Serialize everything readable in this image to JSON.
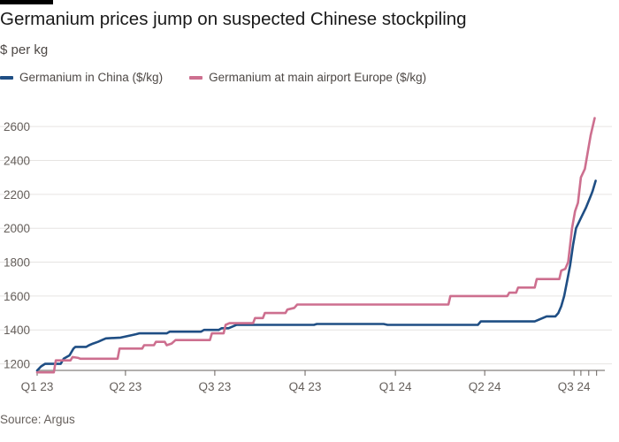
{
  "title": "Germanium prices jump on suspected Chinese stockpiling",
  "subtitle": "$ per kg",
  "source": "Source: Argus",
  "colors": {
    "china": "#1f4e84",
    "europe": "#cd6f8f",
    "grid": "#e6e4e2",
    "axis": "#66605c"
  },
  "legend": [
    {
      "label": "Germanium in China ($/kg)",
      "color": "#1f4e84"
    },
    {
      "label": "Germanium at main airport Europe ($/kg)",
      "color": "#cd6f8f"
    }
  ],
  "chart_data": {
    "type": "line",
    "title": "Germanium prices jump on suspected Chinese stockpiling",
    "ylabel": "$ per kg",
    "ylim": [
      1130,
      2700
    ],
    "xlim": [
      "2023-01-01",
      "2024-07-27"
    ],
    "yticks": [
      1200,
      1400,
      1600,
      1800,
      2000,
      2200,
      2400,
      2600
    ],
    "xticks": [
      {
        "date": "2023-01-01",
        "label": "Q1 23"
      },
      {
        "date": "2023-04-01",
        "label": "Q2 23"
      },
      {
        "date": "2023-07-01",
        "label": "Q3 23"
      },
      {
        "date": "2023-10-01",
        "label": "Q4 23"
      },
      {
        "date": "2024-01-01",
        "label": "Q1 24"
      },
      {
        "date": "2024-04-01",
        "label": "Q2 24"
      },
      {
        "date": "2024-07-01",
        "label": "Q3 24"
      }
    ],
    "grid": true,
    "legend_position": "top-left",
    "series": [
      {
        "name": "Germanium in China ($/kg)",
        "color": "#1f4e84",
        "points": [
          [
            "2023-01-01",
            1160
          ],
          [
            "2023-01-05",
            1185
          ],
          [
            "2023-01-09",
            1200
          ],
          [
            "2023-01-25",
            1200
          ],
          [
            "2023-01-28",
            1230
          ],
          [
            "2023-02-03",
            1250
          ],
          [
            "2023-02-07",
            1290
          ],
          [
            "2023-02-09",
            1300
          ],
          [
            "2023-02-20",
            1300
          ],
          [
            "2023-02-23",
            1310
          ],
          [
            "2023-02-27",
            1320
          ],
          [
            "2023-03-04",
            1330
          ],
          [
            "2023-03-08",
            1340
          ],
          [
            "2023-03-12",
            1350
          ],
          [
            "2023-03-27",
            1355
          ],
          [
            "2023-04-08",
            1370
          ],
          [
            "2023-04-12",
            1375
          ],
          [
            "2023-04-15",
            1380
          ],
          [
            "2023-05-13",
            1380
          ],
          [
            "2023-05-16",
            1390
          ],
          [
            "2023-06-17",
            1390
          ],
          [
            "2023-06-20",
            1400
          ],
          [
            "2023-07-05",
            1400
          ],
          [
            "2023-07-08",
            1410
          ],
          [
            "2023-07-15",
            1410
          ],
          [
            "2023-07-19",
            1420
          ],
          [
            "2023-07-23",
            1430
          ],
          [
            "2023-10-10",
            1430
          ],
          [
            "2023-10-13",
            1435
          ],
          [
            "2023-12-20",
            1435
          ],
          [
            "2023-12-24",
            1430
          ],
          [
            "2024-03-25",
            1430
          ],
          [
            "2024-03-28",
            1450
          ],
          [
            "2024-05-22",
            1450
          ],
          [
            "2024-05-26",
            1460
          ],
          [
            "2024-06-03",
            1480
          ],
          [
            "2024-06-12",
            1480
          ],
          [
            "2024-06-15",
            1500
          ],
          [
            "2024-06-18",
            1540
          ],
          [
            "2024-06-21",
            1600
          ],
          [
            "2024-06-24",
            1690
          ],
          [
            "2024-06-27",
            1780
          ],
          [
            "2024-06-30",
            1900
          ],
          [
            "2024-07-03",
            2000
          ],
          [
            "2024-07-08",
            2060
          ],
          [
            "2024-07-13",
            2120
          ],
          [
            "2024-07-18",
            2190
          ],
          [
            "2024-07-20",
            2220
          ],
          [
            "2024-07-23",
            2280
          ]
        ]
      },
      {
        "name": "Germanium at main airport Europe ($/kg)",
        "color": "#cd6f8f",
        "points": [
          [
            "2023-01-01",
            1150
          ],
          [
            "2023-01-18",
            1150
          ],
          [
            "2023-01-20",
            1220
          ],
          [
            "2023-02-04",
            1220
          ],
          [
            "2023-02-06",
            1240
          ],
          [
            "2023-02-12",
            1235
          ],
          [
            "2023-02-14",
            1230
          ],
          [
            "2023-03-24",
            1230
          ],
          [
            "2023-03-26",
            1290
          ],
          [
            "2023-04-18",
            1290
          ],
          [
            "2023-04-20",
            1310
          ],
          [
            "2023-04-30",
            1310
          ],
          [
            "2023-05-02",
            1330
          ],
          [
            "2023-05-11",
            1330
          ],
          [
            "2023-05-13",
            1310
          ],
          [
            "2023-05-18",
            1320
          ],
          [
            "2023-05-22",
            1340
          ],
          [
            "2023-06-26",
            1340
          ],
          [
            "2023-06-28",
            1380
          ],
          [
            "2023-07-10",
            1380
          ],
          [
            "2023-07-12",
            1430
          ],
          [
            "2023-07-16",
            1440
          ],
          [
            "2023-08-09",
            1440
          ],
          [
            "2023-08-11",
            1470
          ],
          [
            "2023-08-19",
            1470
          ],
          [
            "2023-08-21",
            1500
          ],
          [
            "2023-09-11",
            1500
          ],
          [
            "2023-09-13",
            1520
          ],
          [
            "2023-09-20",
            1530
          ],
          [
            "2023-09-23",
            1550
          ],
          [
            "2024-02-24",
            1550
          ],
          [
            "2024-02-26",
            1600
          ],
          [
            "2024-04-24",
            1600
          ],
          [
            "2024-04-26",
            1620
          ],
          [
            "2024-05-03",
            1620
          ],
          [
            "2024-05-05",
            1650
          ],
          [
            "2024-05-22",
            1650
          ],
          [
            "2024-05-24",
            1700
          ],
          [
            "2024-06-16",
            1700
          ],
          [
            "2024-06-18",
            1750
          ],
          [
            "2024-06-22",
            1760
          ],
          [
            "2024-06-25",
            1800
          ],
          [
            "2024-06-27",
            1900
          ],
          [
            "2024-06-29",
            2000
          ],
          [
            "2024-07-02",
            2100
          ],
          [
            "2024-07-05",
            2150
          ],
          [
            "2024-07-08",
            2300
          ],
          [
            "2024-07-12",
            2350
          ],
          [
            "2024-07-15",
            2450
          ],
          [
            "2024-07-18",
            2550
          ],
          [
            "2024-07-22",
            2650
          ]
        ]
      }
    ]
  }
}
